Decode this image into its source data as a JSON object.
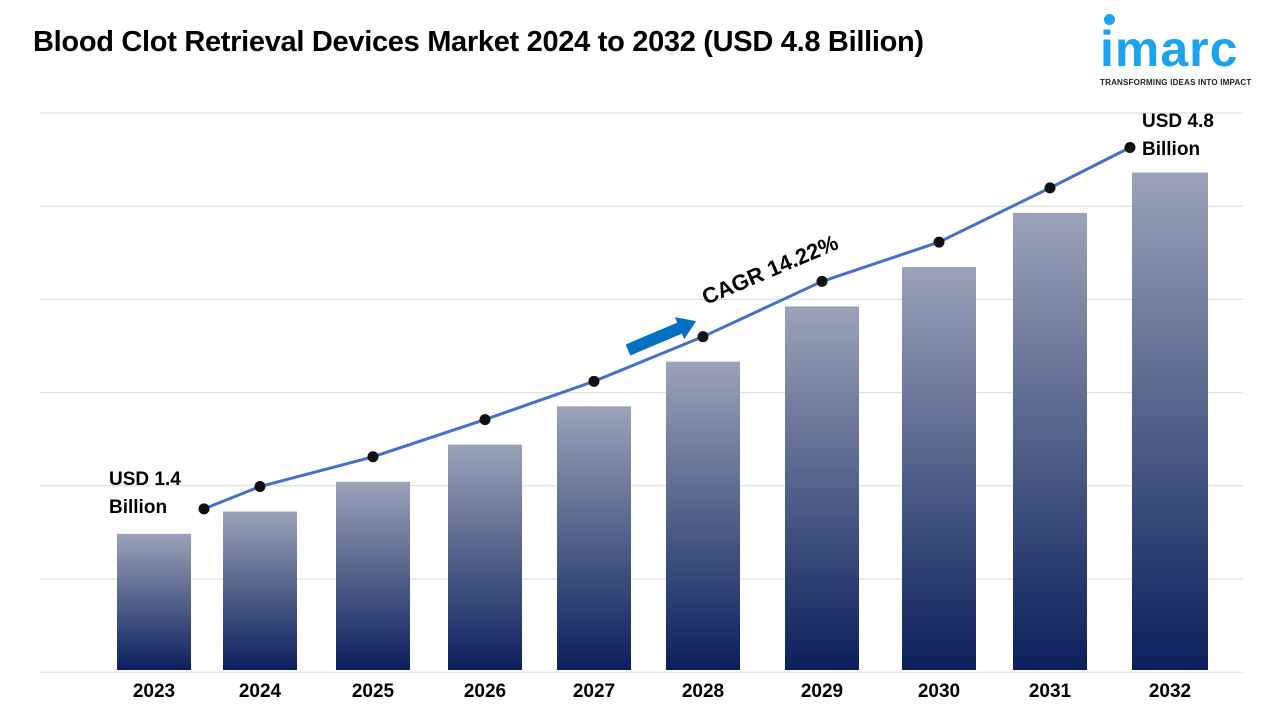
{
  "title": "Blood Clot Retrieval Devices Market 2024 to 2032 (USD 4.8 Billion)",
  "logo": {
    "word": "imarc",
    "tagline": "TRANSFORMING IDEAS INTO IMPACT",
    "color": "#1aa3ef"
  },
  "chart_data": {
    "type": "bar",
    "title": "Blood Clot Retrieval Devices Market 2024 to 2032 (USD 4.8 Billion)",
    "categories": [
      "2023",
      "2024",
      "2025",
      "2026",
      "2027",
      "2028",
      "2029",
      "2030",
      "2031",
      "2032"
    ],
    "values": [
      1.4,
      1.61,
      1.89,
      2.24,
      2.6,
      3.02,
      3.54,
      3.91,
      4.42,
      4.8
    ],
    "overlay_line": true,
    "ylim": [
      0.1,
      5.36
    ],
    "grid": true,
    "annotations": {
      "start": [
        "USD 1.4",
        "Billion"
      ],
      "end": [
        "USD 4.8",
        "Billion"
      ],
      "cagr": "CAGR 14.22%"
    },
    "colors": {
      "bar_top": "#9aa3b8",
      "bar_bottom": "#0b1f5c",
      "line": "#4472c4",
      "point": "#111111",
      "arrow": "#0070c0"
    }
  }
}
